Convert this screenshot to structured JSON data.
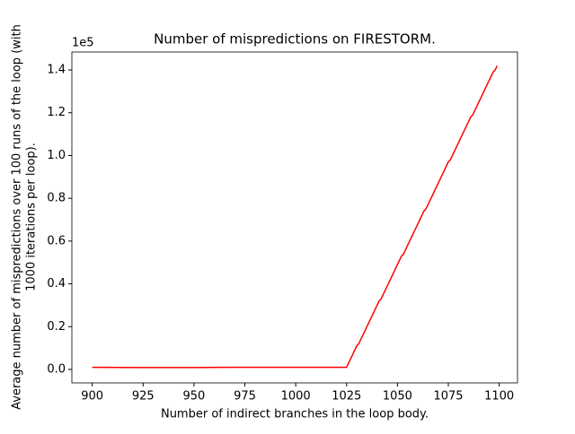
{
  "chart_data": {
    "type": "line",
    "title": "Number of mispredictions on FIRESTORM.",
    "xlabel": "Number of indirect branches in the loop body.",
    "ylabel": [
      "Average number of mispredictions over 100 runs of the loop (with",
      "1000 iterations per loop)."
    ],
    "offset_label": "1e5",
    "x": [
      900,
      925,
      950,
      975,
      1000,
      1025,
      1026,
      1027,
      1028,
      1029,
      1030,
      1031,
      1032,
      1033,
      1034,
      1035,
      1036,
      1037,
      1038,
      1039,
      1040,
      1041,
      1042,
      1043,
      1044,
      1045,
      1046,
      1047,
      1048,
      1049,
      1050,
      1051,
      1052,
      1053,
      1054,
      1055,
      1056,
      1057,
      1058,
      1059,
      1060,
      1061,
      1062,
      1063,
      1064,
      1065,
      1066,
      1067,
      1068,
      1069,
      1070,
      1071,
      1072,
      1073,
      1074,
      1075,
      1076,
      1077,
      1078,
      1079,
      1080,
      1081,
      1082,
      1083,
      1084,
      1085,
      1086,
      1087,
      1088,
      1089,
      1090,
      1091,
      1092,
      1093,
      1094,
      1095,
      1096,
      1097,
      1098,
      1099
    ],
    "series": [
      {
        "color": "#ff0000",
        "values": [
          0.01,
          0.009,
          0.009,
          0.01,
          0.01,
          0.01,
          0.03,
          0.05,
          0.07,
          0.09,
          0.11,
          0.12,
          0.14,
          0.16,
          0.18,
          0.2,
          0.22,
          0.24,
          0.26,
          0.28,
          0.3,
          0.32,
          0.33,
          0.35,
          0.37,
          0.39,
          0.41,
          0.43,
          0.45,
          0.47,
          0.49,
          0.51,
          0.53,
          0.54,
          0.56,
          0.58,
          0.6,
          0.62,
          0.64,
          0.66,
          0.68,
          0.7,
          0.72,
          0.74,
          0.75,
          0.77,
          0.79,
          0.81,
          0.83,
          0.85,
          0.87,
          0.89,
          0.91,
          0.93,
          0.95,
          0.97,
          0.98,
          1.0,
          1.02,
          1.04,
          1.06,
          1.08,
          1.1,
          1.12,
          1.14,
          1.16,
          1.18,
          1.19,
          1.21,
          1.23,
          1.25,
          1.27,
          1.29,
          1.31,
          1.33,
          1.35,
          1.37,
          1.39,
          1.4,
          1.42
        ]
      }
    ],
    "xlim": [
      890,
      1109
    ],
    "ylim": [
      -0.063,
      1.484
    ],
    "xticks": [
      900,
      925,
      950,
      975,
      1000,
      1025,
      1050,
      1075,
      1100
    ],
    "yticks": [
      {
        "value": 0,
        "label": "0.0"
      },
      0.2,
      0.4,
      0.6,
      0.8,
      {
        "value": 1,
        "label": "1.0"
      },
      1.2,
      1.4
    ]
  }
}
